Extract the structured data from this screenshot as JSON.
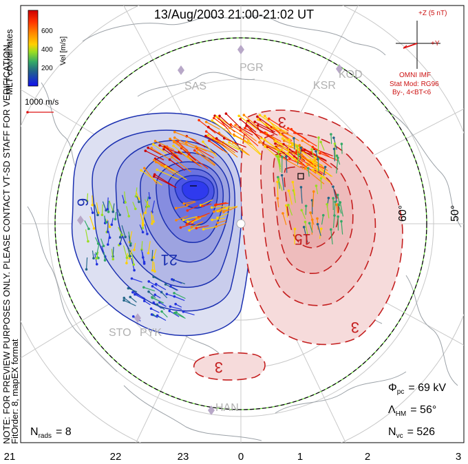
{
  "title": "13/Aug/2003 21:00-21:02 UT",
  "side_note": {
    "line1": "NOTE: FOR PREVIEW PURPOSES ONLY. PLEASE CONTACT VT-SD STAFF FOR VERIFICATION.",
    "line2": "FitOrder: 8, mapEX format",
    "line3": "MLT coordinates"
  },
  "colorbar": {
    "label": "Vel [m/s]",
    "ticks": [
      "600",
      "400",
      "200"
    ],
    "colors": [
      "#cc0000",
      "#ff3300",
      "#ff8800",
      "#ffd000",
      "#99dd22",
      "#33aa66",
      "#226688",
      "#2233dd",
      "#1111ee"
    ]
  },
  "velocity_scale": {
    "label": "1000 m/s"
  },
  "imf": {
    "z_label": "+Z (5 nT)",
    "y_label": "+Y",
    "source": "OMNI IMF",
    "model": "Stat Mod: RG96",
    "conditions": "By-, 4<BT<6"
  },
  "stations": [
    "PGR",
    "SAS",
    "KOD",
    "KSR",
    "STO",
    "PYK",
    "HAN"
  ],
  "latitude_labels": [
    "60°",
    "50°"
  ],
  "contour_labels": {
    "negative": [
      "9",
      "21"
    ],
    "positive": [
      "3",
      "15",
      "3",
      "3"
    ]
  },
  "stats": {
    "phi_label": "Φ",
    "phi_sub": "pc",
    "phi_value": "= 69 kV",
    "lambda_label": "Λ",
    "lambda_sub": "HM",
    "lambda_value": "= 56°",
    "nvc_label": "N",
    "nvc_sub": "vc",
    "nvc_value": "= 526",
    "nrads_label": "N",
    "nrads_sub": "rads",
    "nrads_value": "= 8"
  },
  "mlt_ticks": [
    "21",
    "22",
    "23",
    "0",
    "1",
    "2",
    "3"
  ]
}
